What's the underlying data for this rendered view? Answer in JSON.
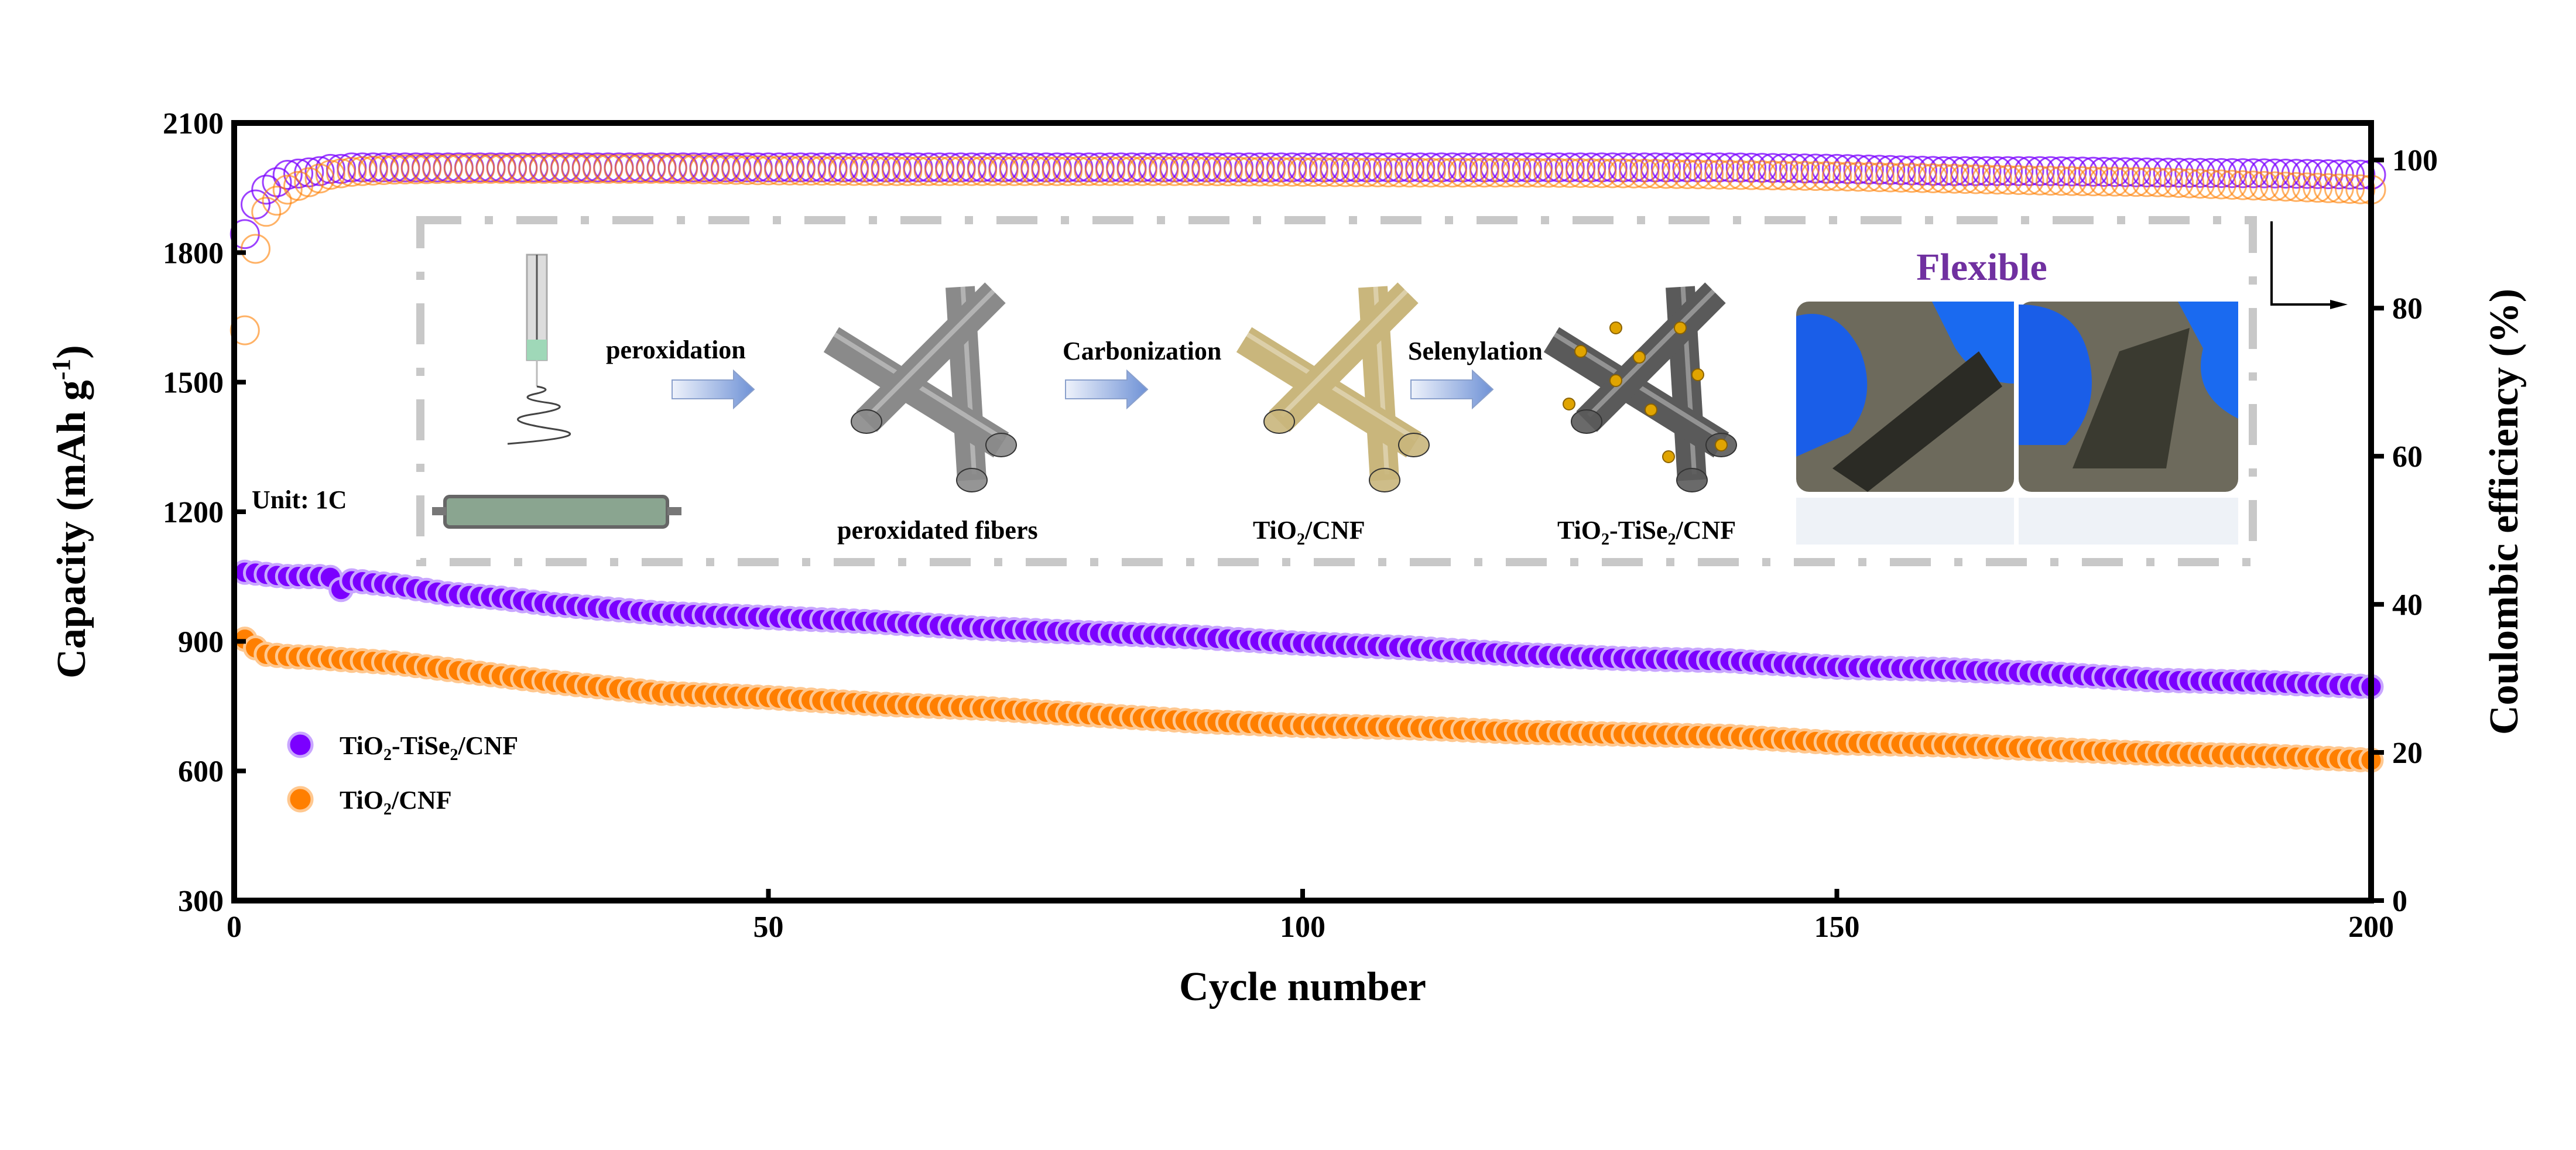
{
  "chart_data": {
    "type": "scatter",
    "title": "",
    "xlabel": "Cycle number",
    "ylabel": "Capacity (mAh g-1)",
    "ylabel_parts": {
      "main": "Capacity (mAh g",
      "sup": "-1",
      "end": ")"
    },
    "y2label": "Coulombic efficiency (%)",
    "xlim": [
      0,
      200
    ],
    "ylim": [
      300,
      2100
    ],
    "y2lim": [
      0,
      105
    ],
    "xticks": [
      "0",
      "50",
      "100",
      "150",
      "200"
    ],
    "yticks": [
      "300",
      "600",
      "900",
      "1200",
      "1500",
      "1800",
      "2100"
    ],
    "y2ticks": [
      "0",
      "20",
      "40",
      "60",
      "80",
      "100"
    ],
    "legend_position": "lower-left",
    "annotation": "Unit: 1C",
    "sample_cycles": [
      1,
      2,
      3,
      5,
      8,
      9,
      10,
      11,
      12,
      15,
      20,
      25,
      30,
      40,
      50,
      60,
      70,
      80,
      90,
      100,
      110,
      120,
      130,
      140,
      150,
      160,
      170,
      180,
      190,
      200
    ],
    "series": [
      {
        "name": "TiO2-TiSe2/CNF",
        "name_parts": [
          "TiO",
          "2",
          "-TiSe",
          "2",
          "/CNF"
        ],
        "color": "#7b00ff",
        "capacity": [
          1060,
          1058,
          1055,
          1050,
          1050,
          1048,
          1020,
          1040,
          1038,
          1030,
          1010,
          1000,
          985,
          965,
          955,
          945,
          930,
          920,
          910,
          895,
          885,
          870,
          860,
          855,
          840,
          835,
          825,
          810,
          805,
          795
        ],
        "ce": [
          90,
          94,
          96,
          98,
          98.5,
          98.8,
          98.8,
          99,
          99,
          99,
          99,
          99,
          99,
          99,
          99,
          99,
          99,
          99,
          99,
          99,
          99,
          99,
          99,
          99,
          98.8,
          98.5,
          98.5,
          98.3,
          98.2,
          98
        ]
      },
      {
        "name": "TiO2/CNF",
        "name_parts": [
          "TiO",
          "2",
          "/CNF"
        ],
        "color": "#ff7f00",
        "capacity": [
          905,
          885,
          870,
          865,
          862,
          860,
          858,
          856,
          855,
          850,
          835,
          820,
          805,
          780,
          770,
          755,
          745,
          730,
          715,
          705,
          700,
          690,
          685,
          680,
          665,
          660,
          650,
          640,
          635,
          625
        ],
        "ce": [
          77,
          88,
          93,
          96,
          97.5,
          98,
          98.2,
          98.4,
          98.5,
          98.7,
          98.8,
          98.8,
          98.8,
          98.8,
          98.6,
          98.5,
          98.5,
          98.5,
          98.5,
          98.4,
          98.3,
          98.3,
          98.2,
          98,
          97.8,
          97.5,
          97.2,
          97,
          96.5,
          96
        ]
      }
    ]
  },
  "inset": {
    "steps": [
      "peroxidation",
      "Carbonization",
      "Selenylation"
    ],
    "labels": {
      "fibers": "peroxidated fibers",
      "cnf": [
        "TiO",
        "2",
        "/CNF"
      ],
      "tise": [
        "TiO",
        "2",
        "-TiSe",
        "2",
        "/CNF"
      ]
    },
    "flexible": "Flexible",
    "flexible_color": "#7030a0"
  }
}
